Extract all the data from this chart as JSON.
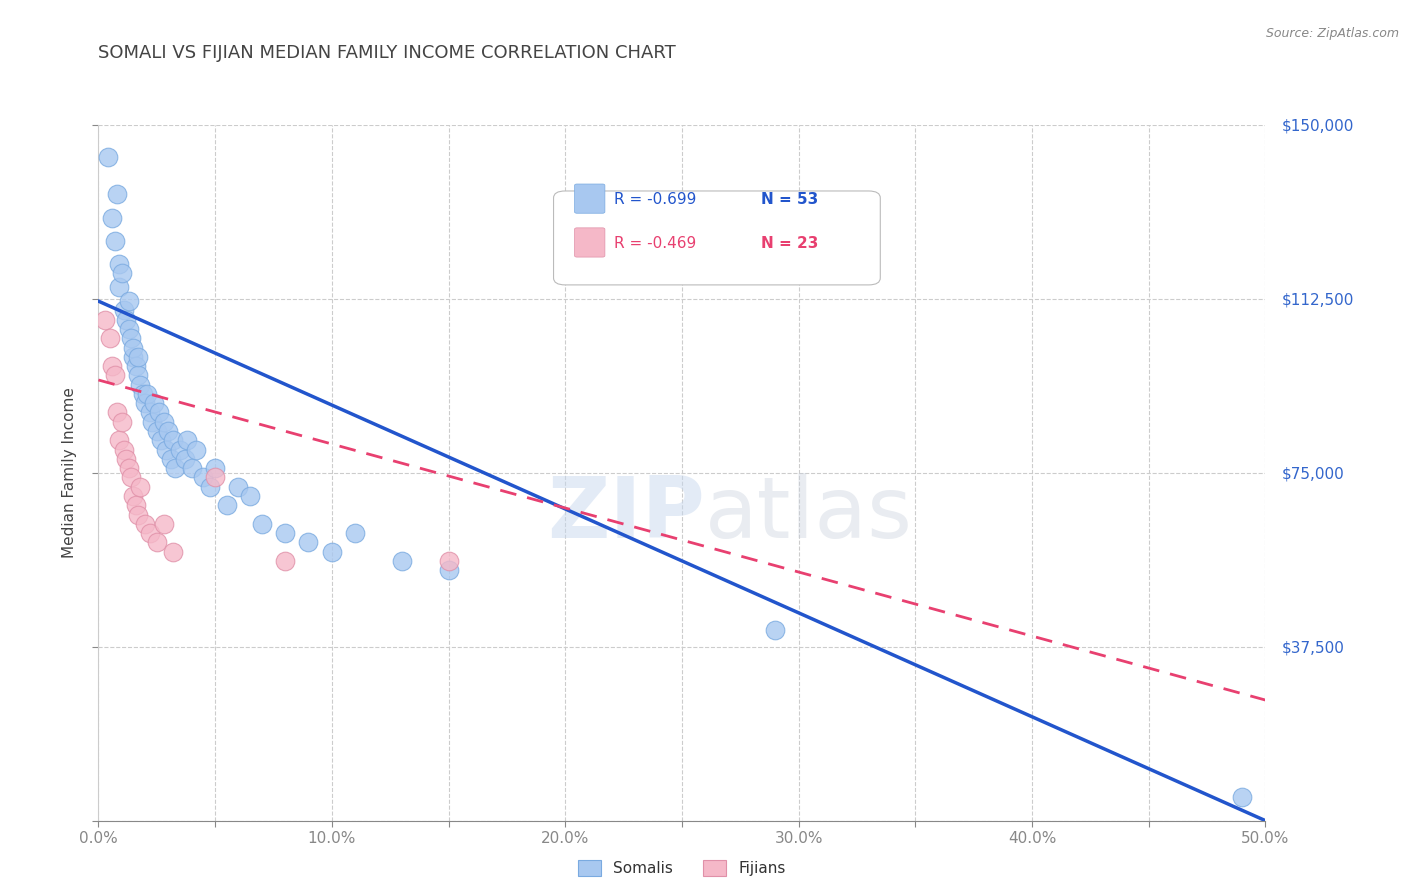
{
  "title": "SOMALI VS FIJIAN MEDIAN FAMILY INCOME CORRELATION CHART",
  "source": "Source: ZipAtlas.com",
  "ylabel": "Median Family Income",
  "xlim": [
    0.0,
    0.5
  ],
  "ylim": [
    0,
    150000
  ],
  "yticks": [
    0,
    37500,
    75000,
    112500,
    150000
  ],
  "ytick_labels": [
    "",
    "$37,500",
    "$75,000",
    "$112,500",
    "$150,000"
  ],
  "xtick_labels": [
    "0.0%",
    "",
    "10.0%",
    "",
    "20.0%",
    "",
    "30.0%",
    "",
    "40.0%",
    "",
    "50.0%"
  ],
  "xticks": [
    0.0,
    0.05,
    0.1,
    0.15,
    0.2,
    0.25,
    0.3,
    0.35,
    0.4,
    0.45,
    0.5
  ],
  "somali_R": -0.699,
  "somali_N": 53,
  "fijian_R": -0.469,
  "fijian_N": 23,
  "somali_color": "#a8c8f0",
  "fijian_color": "#f5b8c8",
  "somali_line_color": "#2255cc",
  "fijian_line_color": "#e84070",
  "background_color": "#ffffff",
  "grid_color": "#cccccc",
  "title_color": "#444444",
  "axis_label_color": "#444444",
  "tick_label_color_x": "#3366cc",
  "tick_label_color_y": "#3366cc",
  "watermark_zip": "ZIP",
  "watermark_atlas": "atlas",
  "somali_x": [
    0.004,
    0.006,
    0.007,
    0.008,
    0.009,
    0.009,
    0.01,
    0.011,
    0.012,
    0.013,
    0.013,
    0.014,
    0.015,
    0.015,
    0.016,
    0.017,
    0.017,
    0.018,
    0.019,
    0.02,
    0.021,
    0.022,
    0.023,
    0.024,
    0.025,
    0.026,
    0.027,
    0.028,
    0.029,
    0.03,
    0.031,
    0.032,
    0.033,
    0.035,
    0.037,
    0.038,
    0.04,
    0.042,
    0.045,
    0.048,
    0.05,
    0.055,
    0.06,
    0.065,
    0.07,
    0.08,
    0.09,
    0.1,
    0.11,
    0.13,
    0.15,
    0.29,
    0.49
  ],
  "somali_y": [
    143000,
    130000,
    125000,
    135000,
    120000,
    115000,
    118000,
    110000,
    108000,
    106000,
    112000,
    104000,
    100000,
    102000,
    98000,
    96000,
    100000,
    94000,
    92000,
    90000,
    92000,
    88000,
    86000,
    90000,
    84000,
    88000,
    82000,
    86000,
    80000,
    84000,
    78000,
    82000,
    76000,
    80000,
    78000,
    82000,
    76000,
    80000,
    74000,
    72000,
    76000,
    68000,
    72000,
    70000,
    64000,
    62000,
    60000,
    58000,
    62000,
    56000,
    54000,
    41000,
    5000
  ],
  "fijian_x": [
    0.003,
    0.005,
    0.006,
    0.007,
    0.008,
    0.009,
    0.01,
    0.011,
    0.012,
    0.013,
    0.014,
    0.015,
    0.016,
    0.017,
    0.018,
    0.02,
    0.022,
    0.025,
    0.028,
    0.032,
    0.05,
    0.08,
    0.15
  ],
  "fijian_y": [
    108000,
    104000,
    98000,
    96000,
    88000,
    82000,
    86000,
    80000,
    78000,
    76000,
    74000,
    70000,
    68000,
    66000,
    72000,
    64000,
    62000,
    60000,
    64000,
    58000,
    74000,
    56000,
    56000
  ],
  "somali_line_x0": 0.0,
  "somali_line_x1": 0.5,
  "somali_line_y0": 112000,
  "somali_line_y1": 0,
  "fijian_line_x0": 0.0,
  "fijian_line_x1": 0.5,
  "fijian_line_y0": 95000,
  "fijian_line_y1": 26000
}
